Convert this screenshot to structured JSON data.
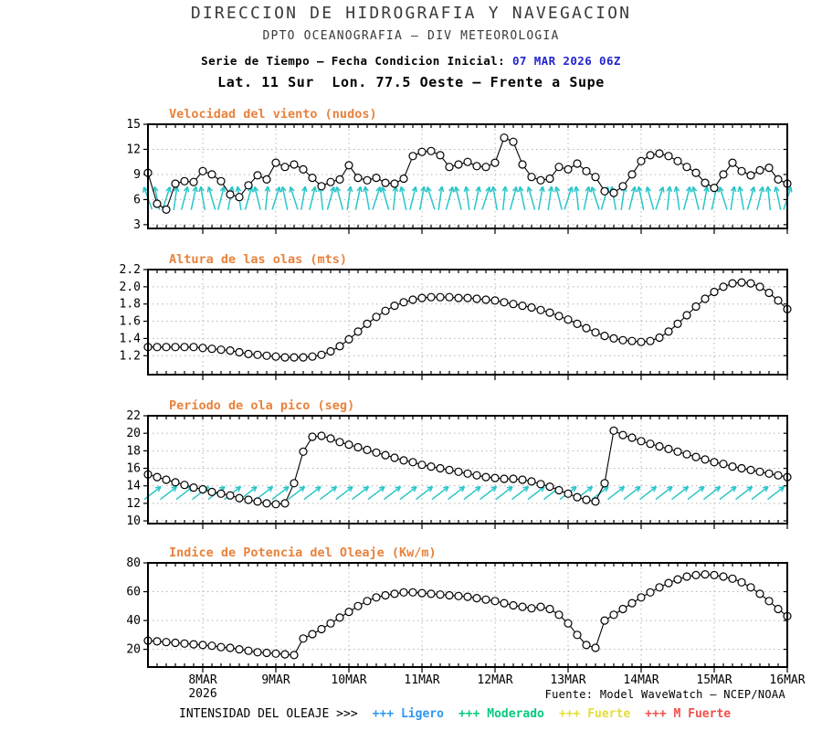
{
  "header": {
    "line1": "DIRECCION DE HIDROGRAFIA Y NAVEGACION",
    "line2": "DPTO OCEANOGRAFIA – DIV METEOROLOGIA",
    "line3_prefix": "Serie de Tiempo – Fecha Condicion Inicial: ",
    "line3_date": "07 MAR 2026 06Z",
    "line4": "Lat. 11 Sur  Lon. 77.5 Oeste – Frente a Supe"
  },
  "colors": {
    "title_orange": "#E8823C",
    "arrow_cyan": "#2AC6C9",
    "date_blue": "#2324CE",
    "grid_gray": "#B4B4B4"
  },
  "x_axis": {
    "tick_labels": [
      "8MAR",
      "9MAR",
      "10MAR",
      "11MAR",
      "12MAR",
      "13MAR",
      "14MAR",
      "15MAR",
      "16MAR"
    ],
    "tick_indices": [
      6,
      14,
      22,
      30,
      38,
      46,
      54,
      62,
      70
    ],
    "year_label": "2026",
    "n_points": 71,
    "points_per_day": 8
  },
  "footer": {
    "source": "Fuente: Model WaveWatch – NCEP/NOAA",
    "legend_label": "INTENSIDAD DEL OLEAJE >>>",
    "legend_items": [
      {
        "symbol": "+++",
        "label": "Ligero",
        "color": "#2E97F2"
      },
      {
        "symbol": "+++",
        "label": "Moderado",
        "color": "#06C97E"
      },
      {
        "symbol": "+++",
        "label": "Fuerte",
        "color": "#E3DE3A"
      },
      {
        "symbol": "+++",
        "label": "M Fuerte",
        "color": "#F2504B"
      }
    ]
  },
  "chart_data": [
    {
      "id": "wind-speed",
      "type": "line",
      "title": "Velocidad del viento (nudos)",
      "ylim": [
        2.55,
        15.0
      ],
      "ytick_values": [
        3,
        6,
        9,
        12,
        15
      ],
      "ytick_labels": [
        "3",
        "6",
        "9",
        "12",
        "15"
      ],
      "wind_arrows": true,
      "arrow_tilts_deg": [
        -20,
        -12,
        18,
        8,
        15,
        12,
        -10,
        -16,
        14,
        10,
        -8,
        16,
        -14,
        6,
        18,
        -12,
        -18,
        10,
        14,
        -6,
        16,
        -15,
        8,
        12,
        -10,
        18,
        -16,
        6,
        -12,
        14,
        10,
        -18,
        8,
        16,
        -14,
        -8,
        12,
        18,
        -10,
        6,
        15,
        -12,
        -16,
        10,
        8,
        -14,
        18,
        -6,
        12,
        -18,
        16,
        -10,
        8,
        14,
        -12,
        -16,
        18,
        6,
        -8,
        15,
        -14,
        10,
        12,
        -18,
        8,
        -10,
        16,
        14,
        -6,
        -12,
        18
      ],
      "values": [
        9.2,
        5.5,
        4.8,
        7.9,
        8.2,
        8.1,
        9.4,
        9.0,
        8.2,
        6.6,
        6.3,
        7.7,
        8.9,
        8.4,
        10.4,
        9.9,
        10.2,
        9.6,
        8.6,
        7.6,
        8.1,
        8.4,
        10.1,
        8.6,
        8.3,
        8.6,
        8.0,
        7.9,
        8.5,
        11.2,
        11.7,
        11.8,
        11.3,
        9.9,
        10.2,
        10.5,
        10.0,
        9.9,
        10.4,
        13.4,
        12.9,
        10.2,
        8.7,
        8.3,
        8.5,
        9.9,
        9.6,
        10.3,
        9.4,
        8.7,
        7.0,
        6.8,
        7.6,
        9.0,
        10.6,
        11.3,
        11.5,
        11.2,
        10.6,
        9.9,
        9.2,
        8.0,
        7.4,
        9.0,
        10.4,
        9.4,
        8.9,
        9.5,
        9.8,
        8.4,
        7.9
      ]
    },
    {
      "id": "wave-height",
      "type": "line",
      "title": "Altura de las olas (mts)",
      "ylim": [
        0.98,
        2.2
      ],
      "ytick_values": [
        1.2,
        1.4,
        1.6,
        1.8,
        2.0,
        2.2
      ],
      "ytick_labels": [
        "1.2",
        "1.4",
        "1.6",
        "1.8",
        "2.0",
        "2.2"
      ],
      "values": [
        1.3,
        1.3,
        1.3,
        1.3,
        1.3,
        1.3,
        1.29,
        1.28,
        1.27,
        1.26,
        1.24,
        1.22,
        1.21,
        1.2,
        1.19,
        1.18,
        1.18,
        1.18,
        1.19,
        1.21,
        1.25,
        1.31,
        1.39,
        1.48,
        1.57,
        1.65,
        1.72,
        1.78,
        1.82,
        1.85,
        1.87,
        1.88,
        1.88,
        1.88,
        1.87,
        1.87,
        1.86,
        1.85,
        1.84,
        1.82,
        1.8,
        1.78,
        1.76,
        1.73,
        1.7,
        1.66,
        1.62,
        1.57,
        1.52,
        1.47,
        1.43,
        1.4,
        1.38,
        1.37,
        1.36,
        1.37,
        1.41,
        1.48,
        1.57,
        1.67,
        1.77,
        1.86,
        1.94,
        2.0,
        2.04,
        2.05,
        2.04,
        2.0,
        1.93,
        1.84,
        1.74
      ]
    },
    {
      "id": "peak-wave-period",
      "type": "line",
      "title": "Período de ola pico (seg)",
      "ylim": [
        9.69,
        22.0
      ],
      "ytick_values": [
        10,
        12,
        14,
        16,
        18,
        20,
        22
      ],
      "ytick_labels": [
        "10",
        "12",
        "14",
        "16",
        "18",
        "20",
        "22"
      ],
      "wave_arrows": true,
      "values": [
        15.3,
        15.0,
        14.7,
        14.4,
        14.1,
        13.8,
        13.6,
        13.3,
        13.1,
        12.9,
        12.6,
        12.4,
        12.2,
        12.0,
        11.9,
        12.0,
        14.3,
        17.9,
        19.6,
        19.7,
        19.4,
        19.0,
        18.7,
        18.4,
        18.1,
        17.8,
        17.5,
        17.2,
        16.9,
        16.7,
        16.4,
        16.2,
        16.0,
        15.8,
        15.6,
        15.4,
        15.2,
        15.0,
        14.9,
        14.8,
        14.8,
        14.7,
        14.5,
        14.2,
        13.9,
        13.5,
        13.1,
        12.7,
        12.4,
        12.2,
        14.3,
        20.3,
        19.8,
        19.5,
        19.1,
        18.8,
        18.5,
        18.2,
        17.9,
        17.6,
        17.3,
        17.0,
        16.7,
        16.5,
        16.2,
        16.0,
        15.8,
        15.6,
        15.4,
        15.2,
        15.0
      ]
    },
    {
      "id": "wave-power-index",
      "type": "line",
      "title": "Indice de Potencia del Oleaje (Kw/m)",
      "ylim": [
        7.7,
        80.0
      ],
      "ytick_values": [
        20,
        40,
        60,
        80
      ],
      "ytick_labels": [
        "20",
        "40",
        "60",
        "80"
      ],
      "values": [
        26,
        25.5,
        25,
        24.5,
        24,
        23.5,
        23,
        22.5,
        21.5,
        21,
        20,
        19,
        18,
        17.5,
        17,
        16.5,
        16,
        27.5,
        30.5,
        34,
        38,
        42,
        46,
        50,
        53.5,
        56,
        57.5,
        58.5,
        59.5,
        59.5,
        59,
        58.5,
        58,
        57.5,
        57,
        56.5,
        55.5,
        54.5,
        53.5,
        52,
        50.5,
        49.5,
        48.5,
        49.5,
        48,
        44,
        38,
        30,
        23,
        21,
        40,
        44,
        48,
        52,
        56,
        59.5,
        63,
        66,
        68.5,
        70.5,
        71.5,
        72,
        71.5,
        70.5,
        69,
        66.5,
        63,
        58.5,
        53.5,
        48,
        43
      ]
    }
  ]
}
